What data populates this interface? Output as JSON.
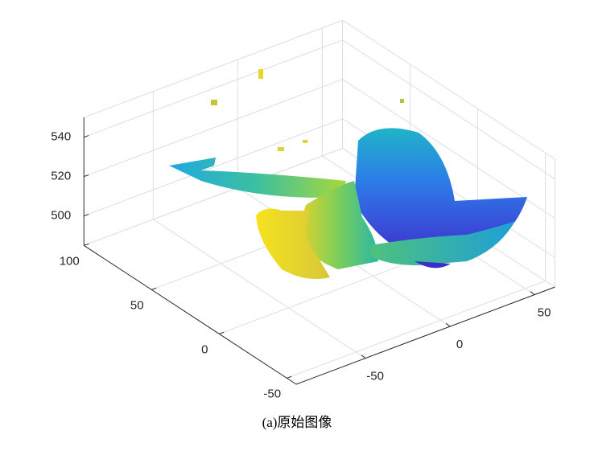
{
  "chart_data": {
    "type": "scatter3d",
    "caption": "(a)原始图像",
    "xlim": [
      -91,
      62
    ],
    "xticks": [
      -50,
      0,
      50
    ],
    "ylim": [
      -57,
      100
    ],
    "yticks": [
      -50,
      0,
      50,
      100
    ],
    "zlim": [
      485,
      550
    ],
    "zticks": [
      500,
      520,
      540
    ],
    "grid": true
  }
}
